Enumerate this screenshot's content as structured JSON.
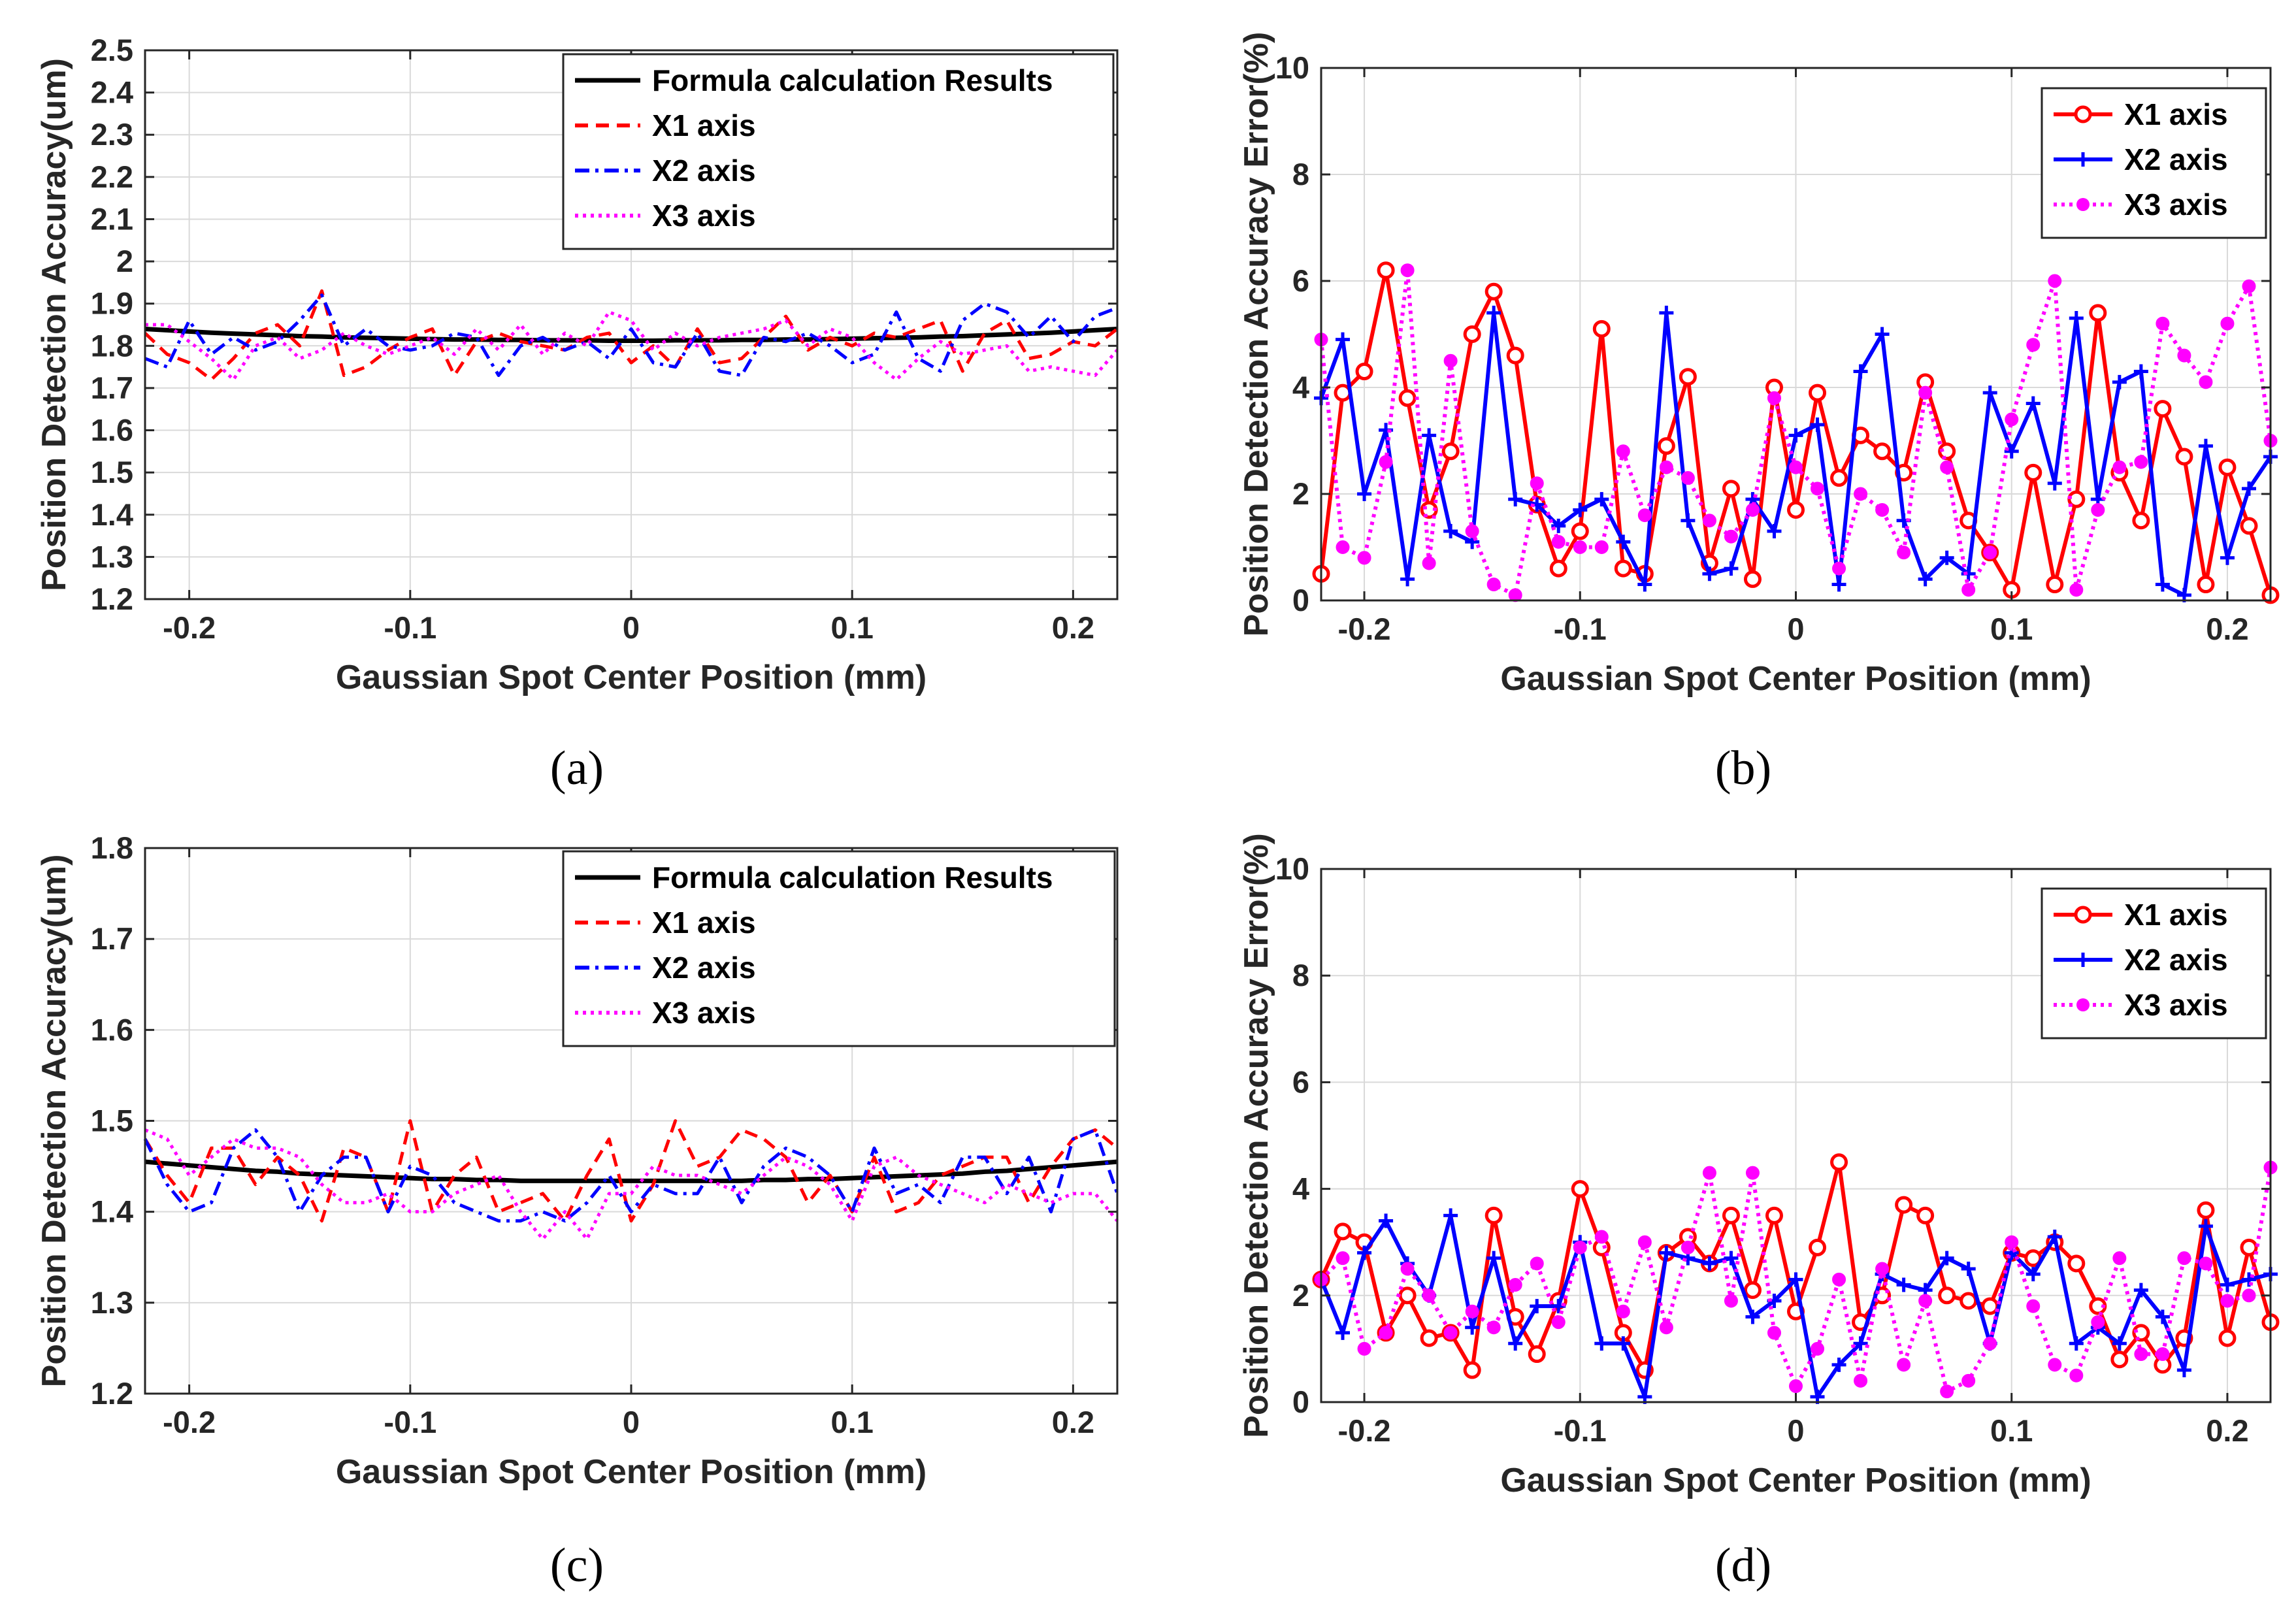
{
  "colors": {
    "formula": "#000000",
    "x1": "#ff0000",
    "x2": "#0000ff",
    "x3": "#ff00ff"
  },
  "chart_data": [
    {
      "panel": "(a)",
      "type": "line",
      "xlabel": "Gaussian Spot Center Position (mm)",
      "ylabel": "Position Detection Accuracy(um)",
      "xlim": [
        -0.22,
        0.22
      ],
      "ylim": [
        1.2,
        2.5
      ],
      "xticks": [
        -0.2,
        -0.1,
        0,
        0.1,
        0.2
      ],
      "xtick_labels": [
        "-0.2",
        "-0.1",
        "0",
        "0.1",
        "0.2"
      ],
      "yticks": [
        1.2,
        1.3,
        1.4,
        1.5,
        1.6,
        1.7,
        1.8,
        1.9,
        2,
        2.1,
        2.2,
        2.3,
        2.4,
        2.5
      ],
      "ytick_labels": [
        "1.2",
        "1.3",
        "1.4",
        "1.5",
        "1.6",
        "1.7",
        "1.8",
        "1.9",
        "2",
        "2.1",
        "2.2",
        "2.3",
        "2.4",
        "2.5"
      ],
      "grid": true,
      "legend_position": "top-right",
      "x": [
        -0.22,
        -0.21,
        -0.2,
        -0.19,
        -0.18,
        -0.17,
        -0.16,
        -0.15,
        -0.14,
        -0.13,
        -0.12,
        -0.11,
        -0.1,
        -0.09,
        -0.08,
        -0.07,
        -0.06,
        -0.05,
        -0.04,
        -0.03,
        -0.02,
        -0.01,
        0,
        0.01,
        0.02,
        0.03,
        0.04,
        0.05,
        0.06,
        0.07,
        0.08,
        0.09,
        0.1,
        0.11,
        0.12,
        0.13,
        0.14,
        0.15,
        0.16,
        0.17,
        0.18,
        0.19,
        0.2,
        0.21,
        0.22
      ],
      "series": [
        {
          "name": "Formula calculation Results",
          "style": "formula",
          "values": [
            1.84,
            1.837,
            1.834,
            1.831,
            1.829,
            1.827,
            1.825,
            1.823,
            1.822,
            1.82,
            1.819,
            1.818,
            1.817,
            1.816,
            1.815,
            1.815,
            1.814,
            1.814,
            1.813,
            1.813,
            1.813,
            1.812,
            1.812,
            1.812,
            1.813,
            1.813,
            1.813,
            1.814,
            1.814,
            1.815,
            1.815,
            1.816,
            1.817,
            1.818,
            1.819,
            1.82,
            1.822,
            1.823,
            1.825,
            1.827,
            1.829,
            1.831,
            1.834,
            1.837,
            1.84
          ]
        },
        {
          "name": "X1 axis",
          "style": "x1",
          "values": [
            1.83,
            1.78,
            1.76,
            1.72,
            1.77,
            1.83,
            1.85,
            1.8,
            1.93,
            1.73,
            1.75,
            1.79,
            1.82,
            1.84,
            1.73,
            1.81,
            1.83,
            1.81,
            1.8,
            1.79,
            1.82,
            1.83,
            1.76,
            1.8,
            1.75,
            1.84,
            1.76,
            1.77,
            1.82,
            1.87,
            1.79,
            1.82,
            1.8,
            1.83,
            1.82,
            1.84,
            1.86,
            1.74,
            1.83,
            1.86,
            1.77,
            1.78,
            1.81,
            1.8,
            1.84
          ]
        },
        {
          "name": "X2 axis",
          "style": "x2",
          "values": [
            1.77,
            1.75,
            1.86,
            1.78,
            1.82,
            1.79,
            1.81,
            1.86,
            1.92,
            1.8,
            1.84,
            1.8,
            1.79,
            1.8,
            1.83,
            1.82,
            1.73,
            1.8,
            1.82,
            1.79,
            1.81,
            1.77,
            1.84,
            1.76,
            1.75,
            1.83,
            1.74,
            1.73,
            1.82,
            1.81,
            1.83,
            1.8,
            1.76,
            1.78,
            1.88,
            1.77,
            1.74,
            1.86,
            1.9,
            1.88,
            1.82,
            1.87,
            1.81,
            1.87,
            1.89
          ]
        },
        {
          "name": "X3 axis",
          "style": "x3",
          "values": [
            1.85,
            1.85,
            1.81,
            1.77,
            1.72,
            1.8,
            1.82,
            1.77,
            1.79,
            1.83,
            1.8,
            1.78,
            1.8,
            1.82,
            1.78,
            1.84,
            1.79,
            1.85,
            1.78,
            1.83,
            1.8,
            1.88,
            1.86,
            1.79,
            1.83,
            1.8,
            1.82,
            1.83,
            1.84,
            1.86,
            1.8,
            1.84,
            1.82,
            1.76,
            1.72,
            1.77,
            1.81,
            1.78,
            1.79,
            1.8,
            1.74,
            1.75,
            1.74,
            1.73,
            1.79
          ]
        }
      ]
    },
    {
      "panel": "(b)",
      "type": "line",
      "xlabel": "Gaussian Spot Center Position (mm)",
      "ylabel": "Position Detection Accuracy Error(%)",
      "xlim": [
        -0.22,
        0.22
      ],
      "ylim": [
        0,
        10
      ],
      "xticks": [
        -0.2,
        -0.1,
        0,
        0.1,
        0.2
      ],
      "xtick_labels": [
        "-0.2",
        "-0.1",
        "0",
        "0.1",
        "0.2"
      ],
      "yticks": [
        0,
        2,
        4,
        6,
        8,
        10
      ],
      "ytick_labels": [
        "0",
        "2",
        "4",
        "6",
        "8",
        "10"
      ],
      "grid": true,
      "legend_position": "top-right",
      "x": [
        -0.22,
        -0.21,
        -0.2,
        -0.19,
        -0.18,
        -0.17,
        -0.16,
        -0.15,
        -0.14,
        -0.13,
        -0.12,
        -0.11,
        -0.1,
        -0.09,
        -0.08,
        -0.07,
        -0.06,
        -0.05,
        -0.04,
        -0.03,
        -0.02,
        -0.01,
        0,
        0.01,
        0.02,
        0.03,
        0.04,
        0.05,
        0.06,
        0.07,
        0.08,
        0.09,
        0.1,
        0.11,
        0.12,
        0.13,
        0.14,
        0.15,
        0.16,
        0.17,
        0.18,
        0.19,
        0.2,
        0.21,
        0.22
      ],
      "series": [
        {
          "name": "X1 axis",
          "style": "x1",
          "values": [
            0.5,
            3.9,
            4.3,
            6.2,
            3.8,
            1.7,
            2.8,
            5.0,
            5.8,
            4.6,
            1.8,
            0.6,
            1.3,
            5.1,
            0.6,
            0.5,
            2.9,
            4.2,
            0.7,
            2.1,
            0.4,
            4.0,
            1.7,
            3.9,
            2.3,
            3.1,
            2.8,
            2.4,
            4.1,
            2.8,
            1.5,
            0.9,
            0.2,
            2.4,
            0.3,
            1.9,
            5.4,
            2.4,
            1.5,
            3.6,
            2.7,
            0.3,
            2.5,
            1.4,
            0.1
          ]
        },
        {
          "name": "X2 axis",
          "style": "x2",
          "values": [
            3.8,
            4.9,
            2.0,
            3.2,
            0.4,
            3.1,
            1.3,
            1.1,
            5.4,
            1.9,
            1.8,
            1.4,
            1.7,
            1.9,
            1.1,
            0.3,
            5.4,
            1.5,
            0.5,
            0.6,
            1.9,
            1.3,
            3.1,
            3.3,
            0.3,
            4.3,
            5.0,
            1.5,
            0.4,
            0.8,
            0.5,
            3.9,
            2.8,
            3.7,
            2.2,
            5.3,
            1.9,
            4.1,
            4.3,
            0.3,
            0.1,
            2.9,
            0.8,
            2.1,
            2.7
          ]
        },
        {
          "name": "X3 axis",
          "style": "x3",
          "values": [
            4.9,
            1.0,
            0.8,
            2.6,
            6.2,
            0.7,
            4.5,
            1.3,
            0.3,
            0.1,
            2.2,
            1.1,
            1.0,
            1.0,
            2.8,
            1.6,
            2.5,
            2.3,
            1.5,
            1.2,
            1.7,
            3.8,
            2.5,
            2.1,
            0.6,
            2.0,
            1.7,
            0.9,
            3.9,
            2.5,
            0.2,
            0.9,
            3.4,
            4.8,
            6.0,
            0.2,
            1.7,
            2.5,
            2.6,
            5.2,
            4.6,
            4.1,
            5.2,
            5.9,
            3.0
          ]
        }
      ]
    },
    {
      "panel": "(c)",
      "type": "line",
      "xlabel": "Gaussian Spot Center Position (mm)",
      "ylabel": "Position Detection Accuracy(um)",
      "xlim": [
        -0.22,
        0.22
      ],
      "ylim": [
        1.2,
        1.8
      ],
      "xticks": [
        -0.2,
        -0.1,
        0,
        0.1,
        0.2
      ],
      "xtick_labels": [
        "-0.2",
        "-0.1",
        "0",
        "0.1",
        "0.2"
      ],
      "yticks": [
        1.2,
        1.3,
        1.4,
        1.5,
        1.6,
        1.7,
        1.8
      ],
      "ytick_labels": [
        "1.2",
        "1.3",
        "1.4",
        "1.5",
        "1.6",
        "1.7",
        "1.8"
      ],
      "grid": true,
      "legend_position": "top-right",
      "x": [
        -0.22,
        -0.21,
        -0.2,
        -0.19,
        -0.18,
        -0.17,
        -0.16,
        -0.15,
        -0.14,
        -0.13,
        -0.12,
        -0.11,
        -0.1,
        -0.09,
        -0.08,
        -0.07,
        -0.06,
        -0.05,
        -0.04,
        -0.03,
        -0.02,
        -0.01,
        0,
        0.01,
        0.02,
        0.03,
        0.04,
        0.05,
        0.06,
        0.07,
        0.08,
        0.09,
        0.1,
        0.11,
        0.12,
        0.13,
        0.14,
        0.15,
        0.16,
        0.17,
        0.18,
        0.19,
        0.2,
        0.21,
        0.22
      ],
      "series": [
        {
          "name": "Formula calculation Results",
          "style": "formula",
          "values": [
            1.455,
            1.453,
            1.451,
            1.449,
            1.447,
            1.445,
            1.444,
            1.442,
            1.441,
            1.44,
            1.439,
            1.438,
            1.437,
            1.436,
            1.436,
            1.435,
            1.435,
            1.434,
            1.434,
            1.434,
            1.434,
            1.434,
            1.434,
            1.434,
            1.434,
            1.434,
            1.434,
            1.434,
            1.435,
            1.435,
            1.436,
            1.436,
            1.437,
            1.438,
            1.439,
            1.44,
            1.441,
            1.442,
            1.444,
            1.445,
            1.447,
            1.449,
            1.451,
            1.453,
            1.455
          ]
        },
        {
          "name": "X1 axis",
          "style": "x1",
          "values": [
            1.48,
            1.44,
            1.41,
            1.47,
            1.47,
            1.43,
            1.46,
            1.44,
            1.39,
            1.47,
            1.46,
            1.4,
            1.5,
            1.4,
            1.44,
            1.46,
            1.4,
            1.41,
            1.42,
            1.39,
            1.44,
            1.48,
            1.39,
            1.43,
            1.5,
            1.45,
            1.46,
            1.49,
            1.48,
            1.46,
            1.41,
            1.44,
            1.4,
            1.46,
            1.4,
            1.41,
            1.44,
            1.45,
            1.46,
            1.46,
            1.41,
            1.45,
            1.48,
            1.49,
            1.47
          ]
        },
        {
          "name": "X2 axis",
          "style": "x2",
          "values": [
            1.48,
            1.43,
            1.4,
            1.41,
            1.47,
            1.49,
            1.46,
            1.4,
            1.44,
            1.46,
            1.46,
            1.4,
            1.45,
            1.44,
            1.41,
            1.4,
            1.39,
            1.39,
            1.4,
            1.39,
            1.41,
            1.44,
            1.4,
            1.43,
            1.42,
            1.42,
            1.46,
            1.41,
            1.45,
            1.47,
            1.46,
            1.44,
            1.4,
            1.47,
            1.42,
            1.43,
            1.41,
            1.46,
            1.46,
            1.42,
            1.46,
            1.4,
            1.48,
            1.49,
            1.42
          ]
        },
        {
          "name": "X3 axis",
          "style": "x3",
          "values": [
            1.49,
            1.48,
            1.44,
            1.46,
            1.48,
            1.47,
            1.47,
            1.46,
            1.43,
            1.41,
            1.41,
            1.42,
            1.4,
            1.4,
            1.42,
            1.43,
            1.44,
            1.4,
            1.37,
            1.4,
            1.37,
            1.42,
            1.42,
            1.45,
            1.44,
            1.44,
            1.43,
            1.42,
            1.44,
            1.46,
            1.45,
            1.43,
            1.39,
            1.45,
            1.46,
            1.44,
            1.43,
            1.42,
            1.41,
            1.43,
            1.42,
            1.41,
            1.42,
            1.42,
            1.39
          ]
        }
      ]
    },
    {
      "panel": "(d)",
      "type": "line",
      "xlabel": "Gaussian Spot Center Position (mm)",
      "ylabel": "Position Detection Accuracy Error(%)",
      "xlim": [
        -0.22,
        0.22
      ],
      "ylim": [
        0,
        10
      ],
      "xticks": [
        -0.2,
        -0.1,
        0,
        0.1,
        0.2
      ],
      "xtick_labels": [
        "-0.2",
        "-0.1",
        "0",
        "0.1",
        "0.2"
      ],
      "yticks": [
        0,
        2,
        4,
        6,
        8,
        10
      ],
      "ytick_labels": [
        "0",
        "2",
        "4",
        "6",
        "8",
        "10"
      ],
      "grid": true,
      "legend_position": "top-right",
      "x": [
        -0.22,
        -0.21,
        -0.2,
        -0.19,
        -0.18,
        -0.17,
        -0.16,
        -0.15,
        -0.14,
        -0.13,
        -0.12,
        -0.11,
        -0.1,
        -0.09,
        -0.08,
        -0.07,
        -0.06,
        -0.05,
        -0.04,
        -0.03,
        -0.02,
        -0.01,
        0,
        0.01,
        0.02,
        0.03,
        0.04,
        0.05,
        0.06,
        0.07,
        0.08,
        0.09,
        0.1,
        0.11,
        0.12,
        0.13,
        0.14,
        0.15,
        0.16,
        0.17,
        0.18,
        0.19,
        0.2,
        0.21,
        0.22
      ],
      "series": [
        {
          "name": "X1 axis",
          "style": "x1",
          "values": [
            2.3,
            3.2,
            3.0,
            1.3,
            2.0,
            1.2,
            1.3,
            0.6,
            3.5,
            1.6,
            0.9,
            1.9,
            4.0,
            2.9,
            1.3,
            0.6,
            2.8,
            3.1,
            2.6,
            3.5,
            2.1,
            3.5,
            1.7,
            2.9,
            4.5,
            1.5,
            2.0,
            3.7,
            3.5,
            2.0,
            1.9,
            1.8,
            2.8,
            2.7,
            3.0,
            2.6,
            1.8,
            0.8,
            1.3,
            0.7,
            1.2,
            3.6,
            1.2,
            2.9,
            1.5
          ]
        },
        {
          "name": "X2 axis",
          "style": "x2",
          "values": [
            2.3,
            1.3,
            2.8,
            3.4,
            2.6,
            2.0,
            3.5,
            1.4,
            2.7,
            1.1,
            1.8,
            1.8,
            3.0,
            1.1,
            1.1,
            0.1,
            2.8,
            2.7,
            2.6,
            2.7,
            1.6,
            1.9,
            2.3,
            0.1,
            0.7,
            1.1,
            2.4,
            2.2,
            2.1,
            2.7,
            2.5,
            1.1,
            2.8,
            2.4,
            3.1,
            1.1,
            1.4,
            1.1,
            2.1,
            1.6,
            0.6,
            3.3,
            2.2,
            2.3,
            2.4
          ]
        },
        {
          "name": "X3 axis",
          "style": "x3",
          "values": [
            2.3,
            2.7,
            1.0,
            1.3,
            2.5,
            2.0,
            1.3,
            1.7,
            1.4,
            2.2,
            2.6,
            1.5,
            2.9,
            3.1,
            1.7,
            3.0,
            1.4,
            2.9,
            4.3,
            1.9,
            4.3,
            1.3,
            0.3,
            1.0,
            2.3,
            0.4,
            2.5,
            0.7,
            1.9,
            0.2,
            0.4,
            1.1,
            3.0,
            1.8,
            0.7,
            0.5,
            1.5,
            2.7,
            0.9,
            0.9,
            2.7,
            2.6,
            1.9,
            2.0,
            4.4
          ]
        }
      ]
    }
  ]
}
